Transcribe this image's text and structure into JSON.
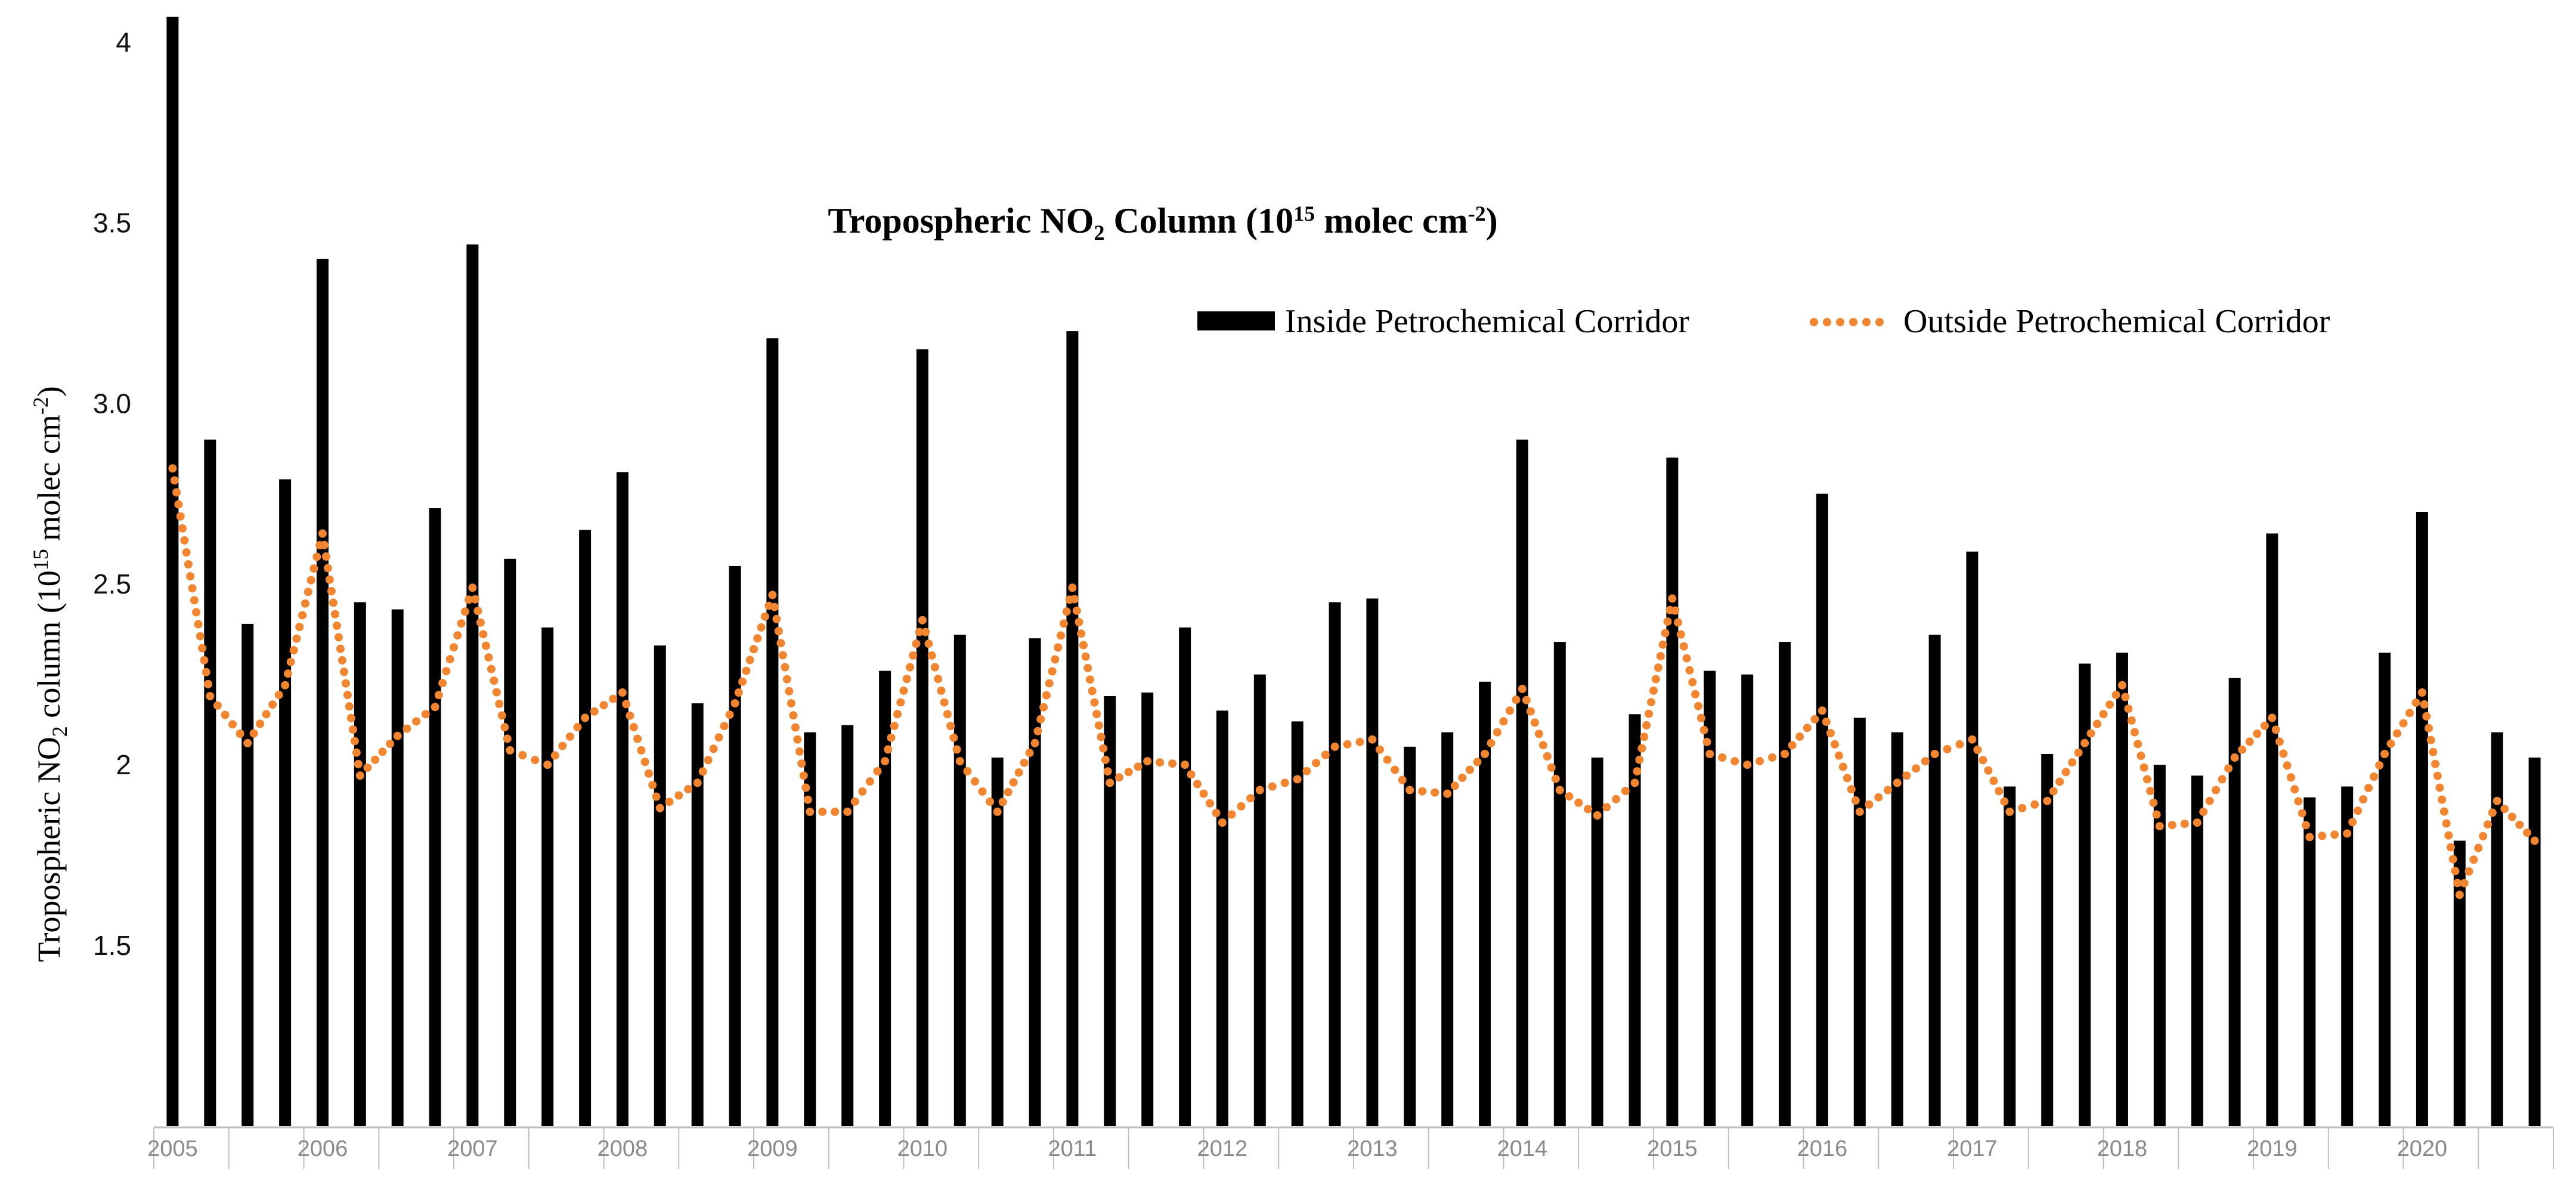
{
  "chart_data": {
    "type": "bar",
    "title": {
      "pre": "Tropospheric NO",
      "sub": "2",
      "mid": " Column (10",
      "sup": "15",
      "post": " molec cm",
      "sup2": "-2",
      "end": ")"
    },
    "ylabel": {
      "pre": "Tropospheric NO",
      "sub": "2",
      "mid": " column (10",
      "sup": "15",
      "post": " molec cm",
      "sup2": "-2",
      "end": ")"
    },
    "ylim": [
      1.0,
      4.07
    ],
    "yticks": [
      {
        "value": 1.5,
        "label": "1.5"
      },
      {
        "value": 2.0,
        "label": "2"
      },
      {
        "value": 2.5,
        "label": "2.5"
      },
      {
        "value": 3.0,
        "label": "3.0"
      },
      {
        "value": 3.5,
        "label": "3.5"
      },
      {
        "value": 4.0,
        "label": "4"
      }
    ],
    "xtick_labels": [
      "2005",
      "2006",
      "2007",
      "2008",
      "2009",
      "2010",
      "2011",
      "2012",
      "2013",
      "2014",
      "2015",
      "2016",
      "2017",
      "2018",
      "2019",
      "2020"
    ],
    "periods_per_year": 4,
    "grid": false,
    "legend_position": "top-right",
    "series": [
      {
        "name": "Inside Petrochemical Corridor",
        "type": "bar",
        "color": "#000000",
        "values": [
          4.07,
          2.9,
          2.39,
          2.79,
          3.4,
          2.45,
          2.43,
          2.71,
          3.44,
          2.57,
          2.38,
          2.65,
          2.81,
          2.33,
          2.17,
          2.55,
          3.18,
          2.09,
          2.11,
          2.26,
          3.15,
          2.36,
          2.02,
          2.35,
          3.2,
          2.19,
          2.2,
          2.38,
          2.15,
          2.25,
          2.12,
          2.45,
          2.46,
          2.05,
          2.09,
          2.23,
          2.9,
          2.34,
          2.02,
          2.14,
          2.85,
          2.26,
          2.25,
          2.34,
          2.75,
          2.13,
          2.09,
          2.36,
          2.59,
          1.94,
          2.03,
          2.28,
          2.31,
          2.0,
          1.97,
          2.24,
          2.64,
          1.91,
          1.94,
          2.31,
          2.7,
          1.79,
          2.09,
          2.02
        ]
      },
      {
        "name": "Outside Petrochemical Corridor",
        "type": "line",
        "style": "dotted",
        "color": "#F28530",
        "values": [
          2.82,
          2.19,
          2.06,
          2.22,
          2.64,
          1.97,
          2.08,
          2.16,
          2.49,
          2.04,
          2.0,
          2.13,
          2.2,
          1.88,
          1.95,
          2.17,
          2.47,
          1.87,
          1.87,
          2.01,
          2.4,
          2.01,
          1.87,
          2.06,
          2.49,
          1.95,
          2.01,
          2.0,
          1.84,
          1.93,
          1.96,
          2.05,
          2.07,
          1.93,
          1.92,
          2.03,
          2.21,
          1.93,
          1.86,
          1.95,
          2.46,
          2.03,
          2.0,
          2.03,
          2.15,
          1.87,
          1.95,
          2.03,
          2.07,
          1.87,
          1.9,
          2.06,
          2.22,
          1.83,
          1.84,
          2.02,
          2.13,
          1.8,
          1.81,
          2.03,
          2.2,
          1.64,
          1.9,
          1.79
        ]
      }
    ]
  }
}
